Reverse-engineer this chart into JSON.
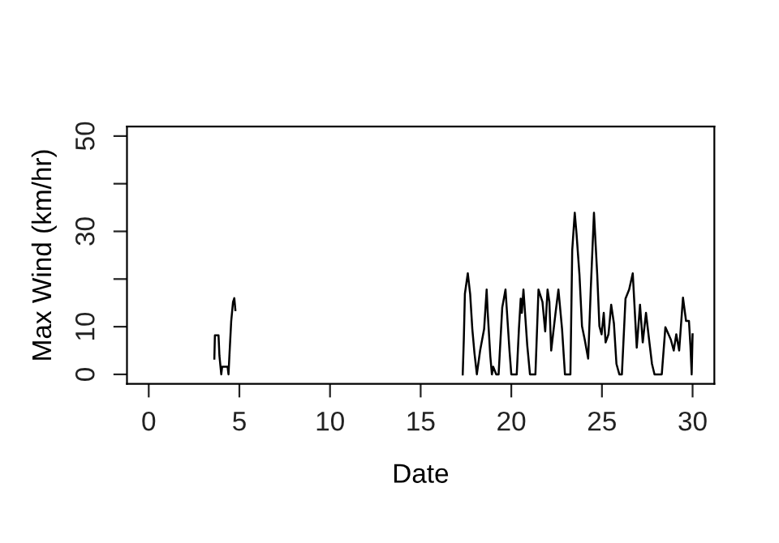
{
  "chart_data": {
    "type": "line",
    "xlabel": "Date",
    "ylabel": "Max Wind (km/hr)",
    "x": [
      3.62,
      3.65,
      3.85,
      3.9,
      4.0,
      4.05,
      4.35,
      4.4,
      4.45,
      4.55,
      4.65,
      4.72,
      4.78,
      11.0,
      17.32,
      17.38,
      17.44,
      17.6,
      17.73,
      17.85,
      17.97,
      18.1,
      18.28,
      18.5,
      18.64,
      18.7,
      18.84,
      18.93,
      19.0,
      19.17,
      19.3,
      19.5,
      19.68,
      19.9,
      20.0,
      20.3,
      20.42,
      20.52,
      20.58,
      20.67,
      20.88,
      21.03,
      21.33,
      21.5,
      21.72,
      21.87,
      22.0,
      22.1,
      22.2,
      22.44,
      22.6,
      22.8,
      22.96,
      23.26,
      23.36,
      23.5,
      23.6,
      23.76,
      23.9,
      24.05,
      24.24,
      24.38,
      24.56,
      24.74,
      24.86,
      24.98,
      25.1,
      25.2,
      25.36,
      25.51,
      25.66,
      25.8,
      25.96,
      26.1,
      26.3,
      26.5,
      26.7,
      26.92,
      27.1,
      27.25,
      27.43,
      27.6,
      27.76,
      27.9,
      28.3,
      28.5,
      28.8,
      28.96,
      29.1,
      29.26,
      29.47,
      29.64,
      29.8,
      29.88,
      29.95,
      30.0
    ],
    "series": [
      {
        "color": "#000000",
        "values": [
          3.3,
          8.2,
          8.2,
          3.9,
          0,
          1.6,
          1.6,
          0,
          3.9,
          11.2,
          15.2,
          16,
          13.5,
          null,
          0,
          7.3,
          16.9,
          21.2,
          16.9,
          9.5,
          4.4,
          0,
          5,
          9.5,
          17.8,
          12.9,
          3.9,
          0,
          1.6,
          0,
          0,
          14,
          17.8,
          5,
          0,
          0,
          9.5,
          15.9,
          12.9,
          17.8,
          6.1,
          0,
          0,
          17.8,
          15.2,
          9,
          17.8,
          15.2,
          5,
          12.9,
          17.8,
          9.5,
          0,
          0,
          26,
          33.9,
          29.4,
          20.9,
          10.1,
          7.3,
          3.3,
          17.5,
          33.9,
          20.9,
          10.1,
          8.4,
          12.9,
          6.7,
          8.4,
          14.6,
          10.7,
          2.2,
          0,
          0,
          15.9,
          17.8,
          21.2,
          5.6,
          14.6,
          6.7,
          12.9,
          7.3,
          2.2,
          0,
          0,
          9.9,
          7.3,
          5,
          8.4,
          5,
          16.1,
          11.2,
          11.2,
          6.1,
          0,
          8.4
        ]
      }
    ],
    "xlim": [
      -1.2,
      31.2
    ],
    "ylim": [
      -2,
      52
    ],
    "xticks": [
      0,
      5,
      10,
      15,
      20,
      25,
      30
    ],
    "yticks": [
      0,
      10,
      {
        "value": 20,
        "label": null
      },
      30,
      {
        "value": 40,
        "label": null
      },
      50
    ],
    "grid": false,
    "legend": false,
    "marker": "none",
    "line_style": "solid"
  }
}
